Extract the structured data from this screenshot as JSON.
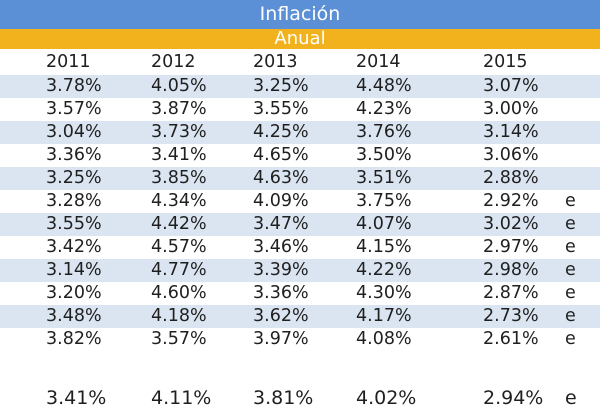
{
  "header": {
    "title": "Inflación",
    "subtitle": "Anual"
  },
  "columns": [
    "2011",
    "2012",
    "2013",
    "2014",
    "2015"
  ],
  "rows": [
    {
      "v": [
        "3.78%",
        "4.05%",
        "3.25%",
        "4.48%",
        "3.07%"
      ],
      "e": ""
    },
    {
      "v": [
        "3.57%",
        "3.87%",
        "3.55%",
        "4.23%",
        "3.00%"
      ],
      "e": ""
    },
    {
      "v": [
        "3.04%",
        "3.73%",
        "4.25%",
        "3.76%",
        "3.14%"
      ],
      "e": ""
    },
    {
      "v": [
        "3.36%",
        "3.41%",
        "4.65%",
        "3.50%",
        "3.06%"
      ],
      "e": ""
    },
    {
      "v": [
        "3.25%",
        "3.85%",
        "4.63%",
        "3.51%",
        "2.88%"
      ],
      "e": ""
    },
    {
      "v": [
        "3.28%",
        "4.34%",
        "4.09%",
        "3.75%",
        "2.92%"
      ],
      "e": "e"
    },
    {
      "v": [
        "3.55%",
        "4.42%",
        "3.47%",
        "4.07%",
        "3.02%"
      ],
      "e": "e"
    },
    {
      "v": [
        "3.42%",
        "4.57%",
        "3.46%",
        "4.15%",
        "2.97%"
      ],
      "e": "e"
    },
    {
      "v": [
        "3.14%",
        "4.77%",
        "3.39%",
        "4.22%",
        "2.98%"
      ],
      "e": "e"
    },
    {
      "v": [
        "3.20%",
        "4.60%",
        "3.36%",
        "4.30%",
        "2.87%"
      ],
      "e": "e"
    },
    {
      "v": [
        "3.48%",
        "4.18%",
        "3.62%",
        "4.17%",
        "2.73%"
      ],
      "e": "e"
    },
    {
      "v": [
        "3.82%",
        "3.57%",
        "3.97%",
        "4.08%",
        "2.61%"
      ],
      "e": "e"
    }
  ],
  "average": {
    "v": [
      "3.41%",
      "4.11%",
      "3.81%",
      "4.02%",
      "2.94%"
    ],
    "e": "e"
  },
  "colors": {
    "title_bg": "#5b8fd6",
    "subtitle_bg": "#f2b21e",
    "row_shade": "#dbe5f1"
  }
}
